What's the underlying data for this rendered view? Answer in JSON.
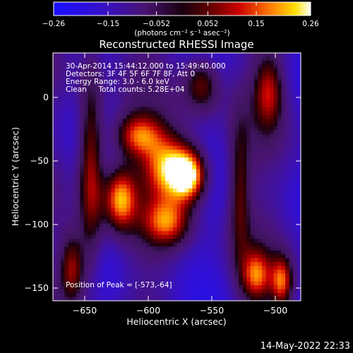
{
  "chart_data": {
    "type": "heatmap",
    "title": "Reconstructed RHESSI Image",
    "xlabel": "Heliocentric X (arcsec)",
    "ylabel": "Heliocentric Y (arcsec)",
    "xlim": [
      -675,
      -480
    ],
    "ylim": [
      -160,
      35
    ],
    "x_ticks": [
      -650,
      -600,
      -550,
      -500
    ],
    "y_ticks": [
      -150,
      -100,
      -50,
      0
    ],
    "x_tick_labels": [
      "−650",
      "−600",
      "−550",
      "−500"
    ],
    "y_tick_labels": [
      "−150",
      "−100",
      "−50",
      "0"
    ],
    "annotations": [
      "30-Apr-2014 15:44:12.000 to 15:49:40.000",
      "Detectors: 3F 4F 5F 6F 7F 8F, Att 0",
      "Energy Range: 3.0 - 6.0 keV",
      "Clean     Total counts: 5.28E+04"
    ],
    "peak_label": "Position of Peak = [-573,-64]",
    "peak": [
      -573,
      -64
    ],
    "colorbar": {
      "min": -0.26,
      "max": 0.26,
      "tick_values": [
        -0.26,
        -0.15,
        -0.052,
        0.052,
        0.15,
        0.26
      ],
      "tick_labels": [
        "−0.26",
        "−0.15",
        "−0.052",
        "0.052",
        "0.15",
        "0.26"
      ],
      "unit_label": "(photons cm⁻² s⁻¹ asec⁻²)"
    },
    "sources": [
      {
        "x": -584,
        "y": -55,
        "amp": 0.21,
        "sx": 14,
        "sy": 18
      },
      {
        "x": -568,
        "y": -62,
        "amp": 0.26,
        "sx": 10,
        "sy": 14
      },
      {
        "x": -622,
        "y": -80,
        "amp": 0.2,
        "sx": 9,
        "sy": 17
      },
      {
        "x": -608,
        "y": -30,
        "amp": 0.14,
        "sx": 13,
        "sy": 12
      },
      {
        "x": -585,
        "y": -98,
        "amp": 0.14,
        "sx": 13,
        "sy": 13
      },
      {
        "x": -645,
        "y": -55,
        "amp": 0.14,
        "sx": 7,
        "sy": 55
      },
      {
        "x": -660,
        "y": -135,
        "amp": 0.13,
        "sx": 7,
        "sy": 20
      },
      {
        "x": -558,
        "y": 10,
        "amp": 0.09,
        "sx": 10,
        "sy": 16
      },
      {
        "x": -515,
        "y": -140,
        "amp": 0.14,
        "sx": 8,
        "sy": 14
      },
      {
        "x": -495,
        "y": -145,
        "amp": 0.15,
        "sx": 6,
        "sy": 14
      },
      {
        "x": -505,
        "y": 5,
        "amp": 0.09,
        "sx": 8,
        "sy": 20
      },
      {
        "x": -528,
        "y": -75,
        "amp": 0.05,
        "sx": 6,
        "sy": 40
      }
    ]
  },
  "footer": {
    "timestamp": "14-May-2022 22:33"
  },
  "colors": {
    "background": "#000000",
    "foreground": "#ffffff"
  }
}
